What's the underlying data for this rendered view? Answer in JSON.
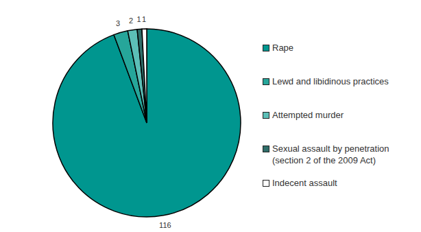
{
  "chart_data": {
    "type": "pie",
    "categories": [
      "Rape",
      "Lewd and libidinous practices",
      "Attempted murder",
      "Sexual assault by penetration (section 2 of the 2009 Act)",
      "Indecent assault"
    ],
    "values": [
      116,
      3,
      2,
      1,
      1
    ],
    "colors": [
      "#00968f",
      "#26a69a",
      "#5cbfb7",
      "#2f6e6a",
      "#ffffff"
    ],
    "data_labels": true,
    "legend": "right"
  }
}
